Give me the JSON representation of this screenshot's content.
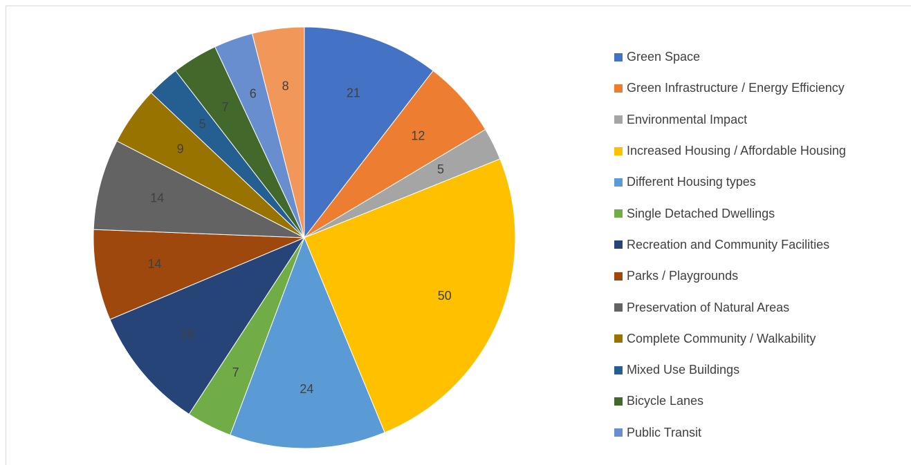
{
  "chart_data": {
    "type": "pie",
    "title": "",
    "legend_position": "right",
    "slices": [
      {
        "label": "Green Space",
        "value": 21,
        "color": "#4472c4"
      },
      {
        "label": "Green Infrastructure / Energy Efficiency",
        "value": 12,
        "color": "#ed7d31"
      },
      {
        "label": "Environmental Impact",
        "value": 5,
        "color": "#a5a5a5"
      },
      {
        "label": "Increased Housing / Affordable Housing",
        "value": 50,
        "color": "#ffc000"
      },
      {
        "label": "Different Housing types",
        "value": 24,
        "color": "#5b9bd5"
      },
      {
        "label": "Single Detached Dwellings",
        "value": 7,
        "color": "#70ad47"
      },
      {
        "label": "Recreation and Community Facilities",
        "value": 19,
        "color": "#264478"
      },
      {
        "label": "Parks / Playgrounds",
        "value": 14,
        "color": "#9e480e"
      },
      {
        "label": "Preservation of Natural Areas",
        "value": 14,
        "color": "#636363"
      },
      {
        "label": "Complete Community / Walkability",
        "value": 9,
        "color": "#997300"
      },
      {
        "label": "Mixed Use Buildings",
        "value": 5,
        "color": "#255e91"
      },
      {
        "label": "Bicycle Lanes",
        "value": 7,
        "color": "#43682b"
      },
      {
        "label": "Public Transit",
        "value": 6,
        "color": "#698ed0"
      },
      {
        "label": "",
        "value": 8,
        "color": "#f1975a"
      }
    ]
  }
}
